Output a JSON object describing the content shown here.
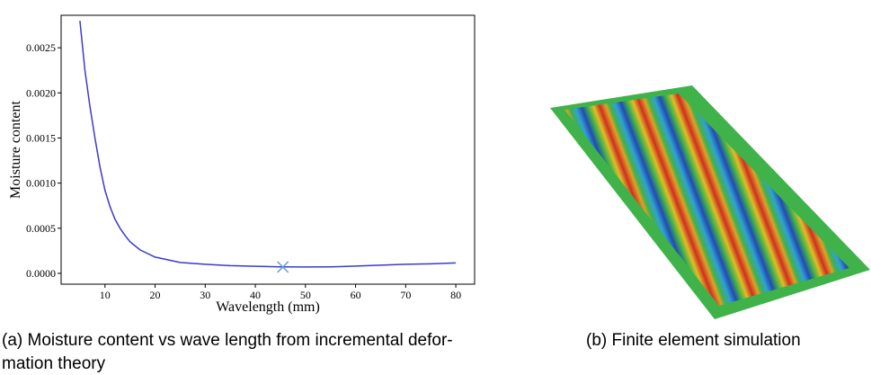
{
  "chart_data": {
    "type": "line",
    "xlabel": "Wavelength (mm)",
    "ylabel": "Moisture content",
    "x": [
      5,
      6,
      7,
      8,
      9,
      10,
      11,
      12,
      13,
      14,
      15,
      17,
      20,
      25,
      30,
      35,
      40,
      45,
      50,
      55,
      60,
      65,
      70,
      75,
      80
    ],
    "series": [
      {
        "color": "#3a3ad0",
        "values": [
          0.0028,
          0.00225,
          0.00185,
          0.0015,
          0.00118,
          0.00092,
          0.00074,
          0.0006,
          0.0005,
          0.00042,
          0.00035,
          0.00026,
          0.00018,
          0.00012,
          0.0001,
          8.5e-05,
          7.8e-05,
          7.2e-05,
          7e-05,
          7.2e-05,
          8e-05,
          9e-05,
          0.0001,
          0.000105,
          0.000115
        ]
      }
    ],
    "marker": {
      "x": 45.5,
      "y": 7e-05,
      "color": "#6aa0e0"
    },
    "xlim": [
      1.25,
      83.75
    ],
    "ylim": [
      -0.00012,
      0.00286
    ],
    "xticks": [
      10,
      20,
      30,
      40,
      50,
      60,
      70,
      80
    ],
    "yticks": [
      {
        "value": 0,
        "label": "0.0000"
      },
      {
        "value": 0.0005,
        "label": "0.0005"
      },
      {
        "value": 0.001,
        "label": "0.0010"
      },
      {
        "value": 0.0015,
        "label": "0.0015"
      },
      {
        "value": 0.002,
        "label": "0.0020"
      },
      {
        "value": 0.0025,
        "label": "0.0025"
      }
    ]
  },
  "captions": {
    "a": [
      "(a) Moisture content vs wave length from incremental defor-",
      "mation theory"
    ],
    "b": "(b) Finite element simulation"
  }
}
